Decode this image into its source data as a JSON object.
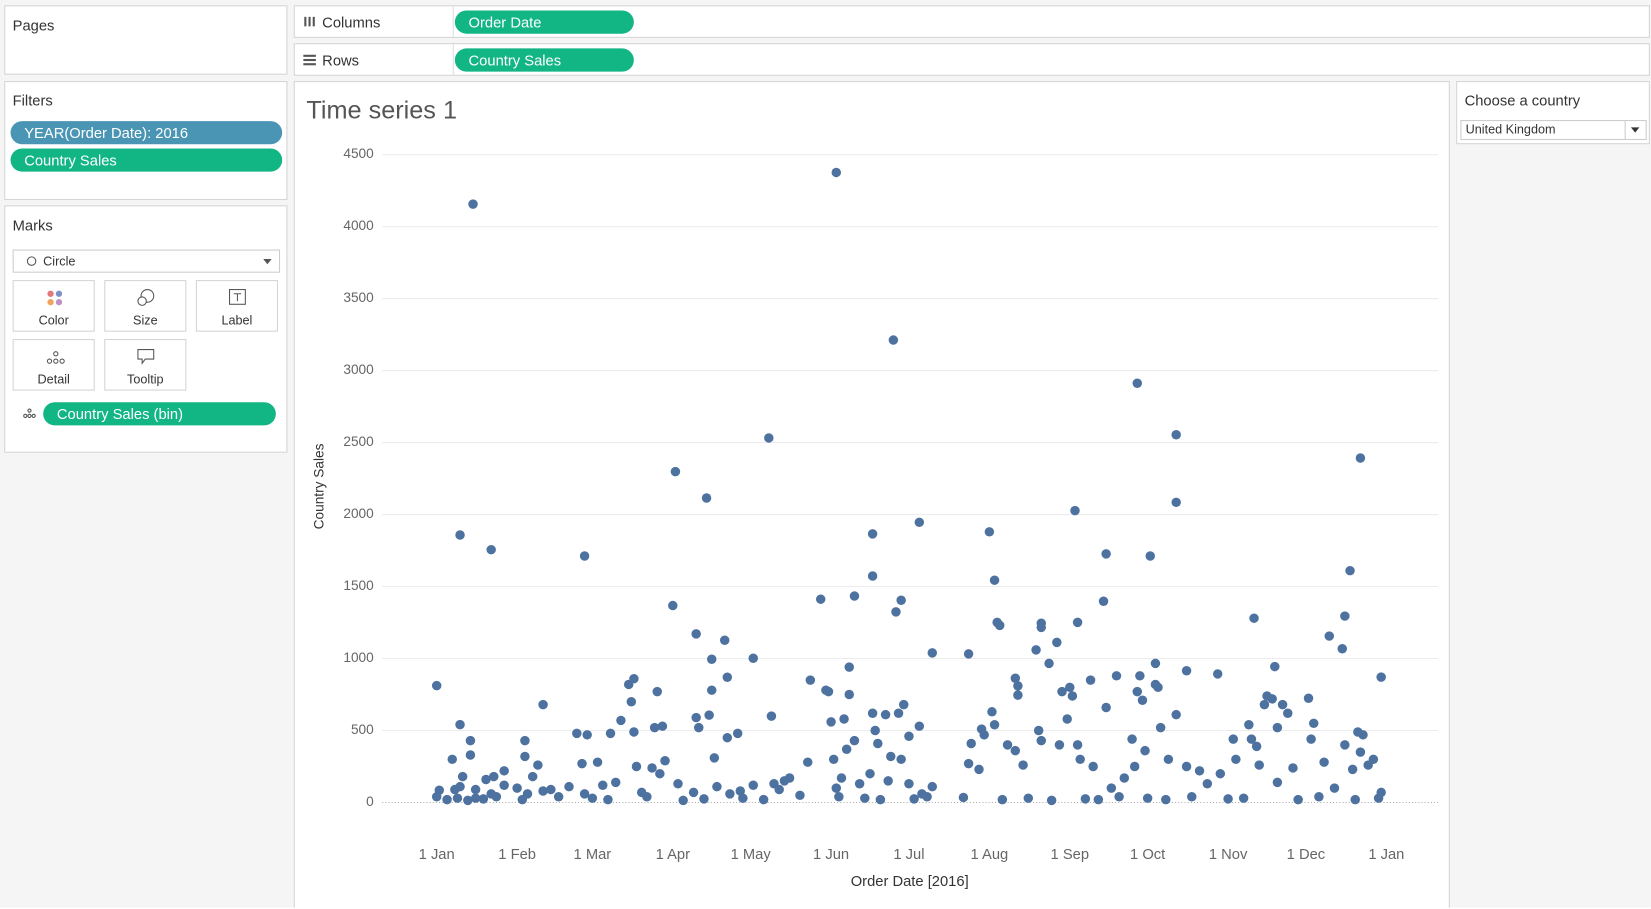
{
  "pages": {
    "title": "Pages"
  },
  "shelves": {
    "columns_label": "Columns",
    "columns_pill": "Order Date",
    "rows_label": "Rows",
    "rows_pill": "Country Sales"
  },
  "filters": {
    "title": "Filters",
    "items": [
      "YEAR(Order Date): 2016",
      "Country Sales"
    ]
  },
  "marks": {
    "title": "Marks",
    "type": "Circle",
    "buttons": [
      "Color",
      "Size",
      "Label",
      "Detail",
      "Tooltip"
    ],
    "pill": "Country Sales (bin)"
  },
  "parameter": {
    "title": "Choose a country",
    "value": "United Kingdom"
  },
  "chart_data": {
    "type": "scatter",
    "title": "Time series 1",
    "x_label": "Order Date [2016]",
    "y_label": "Country Sales",
    "color": "#4e72a0",
    "grid": true,
    "xlim": [
      "2015-12-11",
      "2017-01-21"
    ],
    "ylim": [
      -240,
      4550
    ],
    "xticks": [
      {
        "value": "2016-01-01",
        "label": "1 Jan"
      },
      {
        "value": "2016-02-01",
        "label": "1 Feb"
      },
      {
        "value": "2016-03-01",
        "label": "1 Mar"
      },
      {
        "value": "2016-04-01",
        "label": "1 Apr"
      },
      {
        "value": "2016-05-01",
        "label": "1 May"
      },
      {
        "value": "2016-06-01",
        "label": "1 Jun"
      },
      {
        "value": "2016-07-01",
        "label": "1 Jul"
      },
      {
        "value": "2016-08-01",
        "label": "1 Aug"
      },
      {
        "value": "2016-09-01",
        "label": "1 Sep"
      },
      {
        "value": "2016-10-01",
        "label": "1 Oct"
      },
      {
        "value": "2016-11-01",
        "label": "1 Nov"
      },
      {
        "value": "2016-12-01",
        "label": "1 Dec"
      },
      {
        "value": "2017-01-01",
        "label": "1 Jan"
      }
    ],
    "yticks": [
      0,
      500,
      1000,
      1500,
      2000,
      2500,
      3000,
      3500,
      4000,
      4500
    ],
    "x": [
      "2016-01-01",
      "2016-01-01",
      "2016-01-02",
      "2016-01-05",
      "2016-01-07",
      "2016-01-08",
      "2016-01-09",
      "2016-01-10",
      "2016-01-10",
      "2016-01-10",
      "2016-01-11",
      "2016-01-13",
      "2016-01-14",
      "2016-01-14",
      "2016-01-15",
      "2016-01-16",
      "2016-01-16",
      "2016-01-19",
      "2016-01-20",
      "2016-01-22",
      "2016-01-22",
      "2016-01-23",
      "2016-01-24",
      "2016-01-27",
      "2016-01-27",
      "2016-02-01",
      "2016-02-03",
      "2016-02-04",
      "2016-02-04",
      "2016-02-05",
      "2016-02-07",
      "2016-02-09",
      "2016-02-11",
      "2016-02-11",
      "2016-02-14",
      "2016-02-17",
      "2016-02-21",
      "2016-02-24",
      "2016-02-26",
      "2016-02-27",
      "2016-02-27",
      "2016-02-28",
      "2016-03-01",
      "2016-03-03",
      "2016-03-05",
      "2016-03-07",
      "2016-03-08",
      "2016-03-10",
      "2016-03-12",
      "2016-03-15",
      "2016-03-16",
      "2016-03-17",
      "2016-03-17",
      "2016-03-18",
      "2016-03-20",
      "2016-03-22",
      "2016-03-24",
      "2016-03-25",
      "2016-03-26",
      "2016-03-27",
      "2016-03-28",
      "2016-03-29",
      "2016-04-01",
      "2016-04-02",
      "2016-04-03",
      "2016-04-05",
      "2016-04-09",
      "2016-04-10",
      "2016-04-10",
      "2016-04-11",
      "2016-04-13",
      "2016-04-14",
      "2016-04-15",
      "2016-04-16",
      "2016-04-16",
      "2016-04-17",
      "2016-04-18",
      "2016-04-21",
      "2016-04-22",
      "2016-04-22",
      "2016-04-23",
      "2016-04-26",
      "2016-04-27",
      "2016-04-28",
      "2016-05-02",
      "2016-05-02",
      "2016-05-06",
      "2016-05-08",
      "2016-05-09",
      "2016-05-10",
      "2016-05-12",
      "2016-05-14",
      "2016-05-16",
      "2016-05-20",
      "2016-05-23",
      "2016-05-24",
      "2016-05-28",
      "2016-05-30",
      "2016-05-31",
      "2016-06-01",
      "2016-06-02",
      "2016-06-03",
      "2016-06-03",
      "2016-06-04",
      "2016-06-05",
      "2016-06-06",
      "2016-06-07",
      "2016-06-08",
      "2016-06-08",
      "2016-06-10",
      "2016-06-10",
      "2016-06-12",
      "2016-06-14",
      "2016-06-16",
      "2016-06-17",
      "2016-06-17",
      "2016-06-17",
      "2016-06-18",
      "2016-06-19",
      "2016-06-20",
      "2016-06-22",
      "2016-06-23",
      "2016-06-24",
      "2016-06-25",
      "2016-06-26",
      "2016-06-27",
      "2016-06-28",
      "2016-06-28",
      "2016-06-29",
      "2016-07-01",
      "2016-07-01",
      "2016-07-03",
      "2016-07-05",
      "2016-07-05",
      "2016-07-06",
      "2016-07-08",
      "2016-07-10",
      "2016-07-10",
      "2016-07-22",
      "2016-07-24",
      "2016-07-24",
      "2016-07-25",
      "2016-07-28",
      "2016-07-29",
      "2016-07-30",
      "2016-08-01",
      "2016-08-02",
      "2016-08-03",
      "2016-08-03",
      "2016-08-04",
      "2016-08-05",
      "2016-08-06",
      "2016-08-08",
      "2016-08-11",
      "2016-08-11",
      "2016-08-12",
      "2016-08-12",
      "2016-08-14",
      "2016-08-16",
      "2016-08-19",
      "2016-08-20",
      "2016-08-21",
      "2016-08-21",
      "2016-08-21",
      "2016-08-24",
      "2016-08-25",
      "2016-08-27",
      "2016-08-28",
      "2016-08-29",
      "2016-08-31",
      "2016-09-01",
      "2016-09-02",
      "2016-09-03",
      "2016-09-04",
      "2016-09-04",
      "2016-09-05",
      "2016-09-07",
      "2016-09-09",
      "2016-09-10",
      "2016-09-12",
      "2016-09-14",
      "2016-09-15",
      "2016-09-15",
      "2016-09-17",
      "2016-09-19",
      "2016-09-20",
      "2016-09-22",
      "2016-09-25",
      "2016-09-26",
      "2016-09-27",
      "2016-09-27",
      "2016-09-28",
      "2016-09-29",
      "2016-09-30",
      "2016-10-01",
      "2016-10-02",
      "2016-10-04",
      "2016-10-04",
      "2016-10-05",
      "2016-10-06",
      "2016-10-08",
      "2016-10-09",
      "2016-10-12",
      "2016-10-12",
      "2016-10-12",
      "2016-10-16",
      "2016-10-16",
      "2016-10-18",
      "2016-10-21",
      "2016-10-24",
      "2016-10-28",
      "2016-10-29",
      "2016-11-01",
      "2016-11-03",
      "2016-11-04",
      "2016-11-07",
      "2016-11-09",
      "2016-11-10",
      "2016-11-11",
      "2016-11-12",
      "2016-11-13",
      "2016-11-15",
      "2016-11-16",
      "2016-11-18",
      "2016-11-19",
      "2016-11-20",
      "2016-11-20",
      "2016-11-22",
      "2016-11-24",
      "2016-11-26",
      "2016-11-28",
      "2016-12-02",
      "2016-12-03",
      "2016-12-04",
      "2016-12-06",
      "2016-12-08",
      "2016-12-10",
      "2016-12-12",
      "2016-12-15",
      "2016-12-16",
      "2016-12-16",
      "2016-12-18",
      "2016-12-19",
      "2016-12-20",
      "2016-12-21",
      "2016-12-22",
      "2016-12-22",
      "2016-12-23",
      "2016-12-25",
      "2016-12-27",
      "2016-12-29",
      "2016-12-30",
      "2016-12-30"
    ],
    "values": [
      812,
      40,
      85,
      20,
      300,
      90,
      30,
      1858,
      541,
      110,
      180,
      15,
      330,
      430,
      4156,
      90,
      30,
      25,
      160,
      1756,
      60,
      180,
      40,
      120,
      220,
      100,
      20,
      430,
      320,
      60,
      180,
      260,
      680,
      80,
      90,
      40,
      110,
      480,
      270,
      1712,
      60,
      470,
      30,
      280,
      120,
      20,
      480,
      140,
      570,
      820,
      700,
      860,
      490,
      250,
      70,
      40,
      240,
      520,
      770,
      200,
      530,
      290,
      1368,
      2298,
      130,
      15,
      70,
      1171,
      590,
      520,
      25,
      2115,
      607,
      995,
      780,
      310,
      110,
      1127,
      870,
      450,
      60,
      480,
      80,
      30,
      1002,
      120,
      20,
      2532,
      600,
      130,
      90,
      150,
      170,
      50,
      280,
      850,
      1412,
      780,
      770,
      560,
      300,
      4376,
      100,
      40,
      170,
      580,
      370,
      940,
      750,
      1434,
      430,
      130,
      30,
      200,
      1866,
      1573,
      620,
      500,
      410,
      20,
      610,
      150,
      320,
      3212,
      1324,
      620,
      1405,
      300,
      680,
      460,
      130,
      25,
      1946,
      530,
      60,
      40,
      1039,
      110,
      35,
      1032,
      270,
      410,
      230,
      510,
      470,
      1880,
      630,
      1544,
      540,
      1251,
      1230,
      20,
      400,
      863,
      360,
      746,
      810,
      260,
      30,
      1060,
      500,
      1245,
      1216,
      430,
      966,
      15,
      1112,
      400,
      770,
      580,
      800,
      740,
      2027,
      1251,
      400,
      300,
      25,
      850,
      250,
      20,
      1398,
      1727,
      660,
      100,
      880,
      40,
      170,
      440,
      250,
      2912,
      770,
      880,
      710,
      360,
      30,
      1712,
      966,
      820,
      800,
      520,
      20,
      300,
      2554,
      2085,
      610,
      915,
      250,
      40,
      220,
      130,
      893,
      200,
      25,
      440,
      300,
      30,
      540,
      440,
      1280,
      390,
      260,
      680,
      740,
      720,
      944,
      520,
      140,
      680,
      620,
      240,
      20,
      724,
      440,
      550,
      40,
      280,
      1156,
      100,
      1068,
      1295,
      400,
      1610,
      230,
      20,
      490,
      2393,
      350,
      470,
      260,
      300,
      30,
      871,
      70
    ]
  }
}
